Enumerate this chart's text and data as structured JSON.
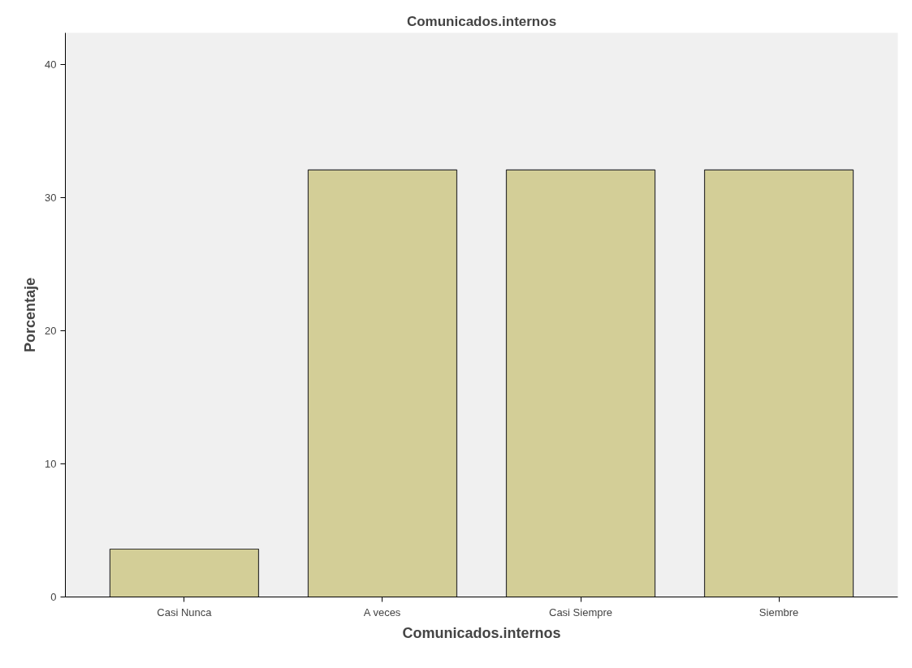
{
  "chart_data": {
    "type": "bar",
    "title": "Comunicados.internos",
    "xlabel": "Comunicados.internos",
    "ylabel": "Porcentaje",
    "categories": [
      "Casi Nunca",
      "A veces",
      "Casi Siempre",
      "Siembre"
    ],
    "values": [
      3.6,
      32.1,
      32.1,
      32.1
    ],
    "color": "#d3ce97",
    "ylim": [
      0,
      42.4
    ],
    "yticks": [
      0,
      10,
      20,
      30,
      40
    ],
    "grid": false
  }
}
